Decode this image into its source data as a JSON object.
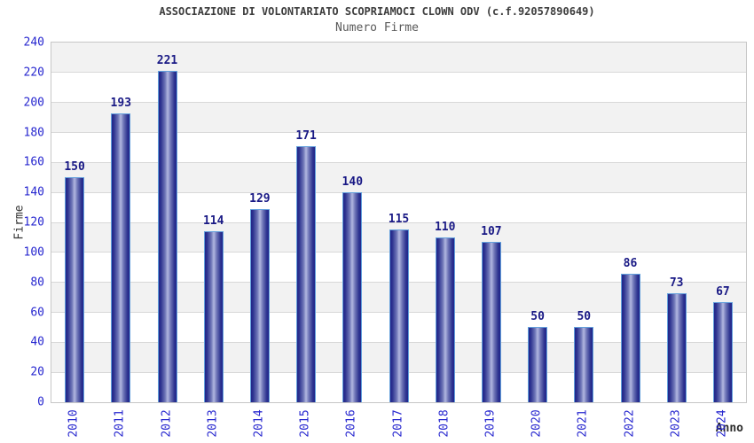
{
  "chart_data": {
    "type": "bar",
    "title": "ASSOCIAZIONE DI VOLONTARIATO SCOPRIAMOCI CLOWN ODV (c.f.92057890649)",
    "subtitle": "Numero Firme",
    "xlabel": "Anno",
    "ylabel": "Firme",
    "categories": [
      "2010",
      "2011",
      "2012",
      "2013",
      "2014",
      "2015",
      "2016",
      "2017",
      "2018",
      "2019",
      "2020",
      "2021",
      "2022",
      "2023",
      "2024"
    ],
    "values": [
      150,
      193,
      221,
      114,
      129,
      171,
      140,
      115,
      110,
      107,
      50,
      50,
      86,
      73,
      67
    ],
    "ylim": [
      0,
      240
    ],
    "ytick_step": 20,
    "grid": true,
    "band_shading": "alternating horizontal 20-unit bands",
    "legend_position": "none",
    "colors": {
      "bar_dark": "#20258a",
      "bar_mid": "#7077b8",
      "bar_light": "#b2b7e0",
      "bar_border": "#63a0dc",
      "tick_label": "#2727cf",
      "value_label": "#191985",
      "band_gray": "#f2f2f2",
      "gridline": "#d8d8d8",
      "plot_border": "#c6c6c6"
    }
  }
}
